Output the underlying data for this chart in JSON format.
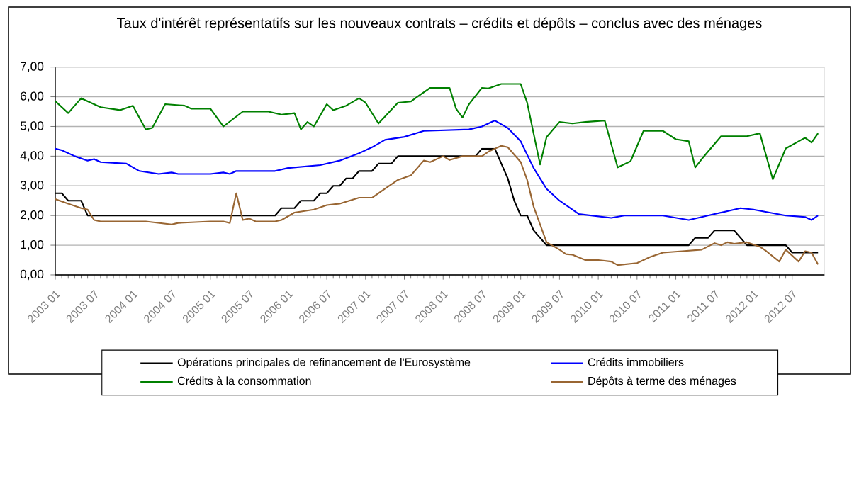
{
  "chart_data": {
    "type": "line",
    "title": "Taux d'intérêt représentatifs sur les nouveaux contrats – crédits et dépôts – conclus avec des ménages",
    "xlim": [
      "2003-01",
      "2012-12"
    ],
    "xticks": [
      {
        "value": "2003-01",
        "label": "2003 01"
      },
      {
        "value": "2003-07",
        "label": "2003 07"
      },
      {
        "value": "2004-01",
        "label": "2004 01"
      },
      {
        "value": "2004-07",
        "label": "2004 07"
      },
      {
        "value": "2005-01",
        "label": "2005 01"
      },
      {
        "value": "2005-07",
        "label": "2005 07"
      },
      {
        "value": "2006-01",
        "label": "2006 01"
      },
      {
        "value": "2006-07",
        "label": "2006 07"
      },
      {
        "value": "2007-01",
        "label": "2007 01"
      },
      {
        "value": "2007-07",
        "label": "2007 07"
      },
      {
        "value": "2008-01",
        "label": "2008 01"
      },
      {
        "value": "2008-07",
        "label": "2008 07"
      },
      {
        "value": "2009-01",
        "label": "2009 01"
      },
      {
        "value": "2009-07",
        "label": "2009 07"
      },
      {
        "value": "2010-01",
        "label": "2010 01"
      },
      {
        "value": "2010-07",
        "label": "2010 07"
      },
      {
        "value": "2011-01",
        "label": "2011 01"
      },
      {
        "value": "2011-07",
        "label": "2011 07"
      },
      {
        "value": "2012-01",
        "label": "2012 01"
      },
      {
        "value": "2012-07",
        "label": "2012 07"
      }
    ],
    "ylim": [
      0,
      7
    ],
    "yticks": [
      {
        "value": 0,
        "label": "0,00"
      },
      {
        "value": 1,
        "label": "1,00"
      },
      {
        "value": 2,
        "label": "2,00"
      },
      {
        "value": 3,
        "label": "3,00"
      },
      {
        "value": 4,
        "label": "4,00"
      },
      {
        "value": 5,
        "label": "5,00"
      },
      {
        "value": 6,
        "label": "6,00"
      },
      {
        "value": 7,
        "label": "7,00"
      }
    ],
    "grid": "y",
    "legend": "bottom",
    "series": [
      {
        "name": "Opérations principales de refinancement de l'Eurosystème",
        "color": "#000000",
        "x": [
          "2003-01",
          "2003-02",
          "2003-03",
          "2003-05",
          "2003-06",
          "2005-11",
          "2005-12",
          "2006-02",
          "2006-03",
          "2006-05",
          "2006-06",
          "2006-07",
          "2006-08",
          "2006-09",
          "2006-10",
          "2006-11",
          "2006-12",
          "2007-02",
          "2007-03",
          "2007-05",
          "2007-06",
          "2008-06",
          "2008-07",
          "2008-09",
          "2008-10",
          "2008-11",
          "2008-12",
          "2009-01",
          "2009-02",
          "2009-03",
          "2009-04",
          "2009-05",
          "2011-03",
          "2011-04",
          "2011-06",
          "2011-07",
          "2011-10",
          "2011-11",
          "2011-12",
          "2012-06",
          "2012-07",
          "2012-11"
        ],
        "values": [
          2.75,
          2.75,
          2.5,
          2.5,
          2.0,
          2.0,
          2.25,
          2.25,
          2.5,
          2.5,
          2.75,
          2.75,
          3.0,
          3.0,
          3.25,
          3.25,
          3.5,
          3.5,
          3.75,
          3.75,
          4.0,
          4.0,
          4.25,
          4.25,
          3.75,
          3.25,
          2.5,
          2.0,
          2.0,
          1.5,
          1.25,
          1.0,
          1.0,
          1.25,
          1.25,
          1.5,
          1.5,
          1.25,
          1.0,
          1.0,
          0.75,
          0.75
        ]
      },
      {
        "name": "Crédits immobiliers",
        "color": "#0000ff",
        "x": [
          "2003-01",
          "2003-02",
          "2003-04",
          "2003-06",
          "2003-07",
          "2003-08",
          "2003-12",
          "2004-02",
          "2004-05",
          "2004-07",
          "2004-08",
          "2005-01",
          "2005-03",
          "2005-04",
          "2005-05",
          "2005-11",
          "2006-01",
          "2006-06",
          "2006-09",
          "2006-12",
          "2007-02",
          "2007-04",
          "2007-07",
          "2007-10",
          "2008-05",
          "2008-07",
          "2008-09",
          "2008-11",
          "2009-01",
          "2009-03",
          "2009-05",
          "2009-07",
          "2009-10",
          "2010-03",
          "2010-05",
          "2010-11",
          "2011-03",
          "2011-07",
          "2011-11",
          "2012-01",
          "2012-06",
          "2012-09",
          "2012-10",
          "2012-11"
        ],
        "values": [
          4.25,
          4.2,
          4.0,
          3.85,
          3.9,
          3.8,
          3.75,
          3.5,
          3.4,
          3.45,
          3.4,
          3.4,
          3.45,
          3.4,
          3.5,
          3.5,
          3.6,
          3.7,
          3.85,
          4.1,
          4.3,
          4.55,
          4.65,
          4.85,
          4.9,
          5.0,
          5.2,
          4.95,
          4.5,
          3.6,
          2.9,
          2.5,
          2.05,
          1.92,
          2.0,
          2.0,
          1.85,
          2.05,
          2.25,
          2.2,
          2.0,
          1.95,
          1.85,
          2.0
        ]
      },
      {
        "name": "Crédits à la consommation",
        "color": "#008000",
        "x": [
          "2003-01",
          "2003-03",
          "2003-05",
          "2003-08",
          "2003-11",
          "2004-01",
          "2004-03",
          "2004-04",
          "2004-06",
          "2004-09",
          "2004-10",
          "2005-01",
          "2005-03",
          "2005-06",
          "2005-10",
          "2005-12",
          "2006-02",
          "2006-03",
          "2006-04",
          "2006-05",
          "2006-07",
          "2006-08",
          "2006-10",
          "2006-12",
          "2007-01",
          "2007-03",
          "2007-06",
          "2007-08",
          "2007-09",
          "2007-11",
          "2008-02",
          "2008-03",
          "2008-04",
          "2008-05",
          "2008-07",
          "2008-08",
          "2008-10",
          "2009-01",
          "2009-02",
          "2009-04",
          "2009-05",
          "2009-07",
          "2009-09",
          "2009-11",
          "2010-02",
          "2010-04",
          "2010-06",
          "2010-08",
          "2010-11",
          "2011-01",
          "2011-03",
          "2011-04",
          "2011-05",
          "2011-08",
          "2011-12",
          "2012-02",
          "2012-04",
          "2012-06",
          "2012-09",
          "2012-10",
          "2012-11"
        ],
        "values": [
          5.85,
          5.45,
          5.95,
          5.65,
          5.55,
          5.7,
          4.9,
          4.95,
          5.75,
          5.7,
          5.6,
          5.6,
          5.0,
          5.5,
          5.5,
          5.4,
          5.45,
          4.9,
          5.15,
          5.0,
          5.75,
          5.55,
          5.7,
          5.95,
          5.8,
          5.1,
          5.8,
          5.84,
          6.0,
          6.3,
          6.3,
          5.6,
          5.3,
          5.75,
          6.3,
          6.28,
          6.43,
          6.43,
          5.8,
          3.72,
          4.64,
          5.15,
          5.1,
          5.15,
          5.2,
          3.62,
          3.83,
          4.85,
          4.85,
          4.57,
          4.5,
          3.62,
          3.9,
          4.67,
          4.67,
          4.77,
          3.22,
          4.26,
          4.62,
          4.46,
          4.77
        ]
      },
      {
        "name": "Dépôts à terme des ménages",
        "color": "#996633",
        "x": [
          "2003-01",
          "2003-03",
          "2003-05",
          "2003-06",
          "2003-07",
          "2003-08",
          "2004-03",
          "2004-07",
          "2004-08",
          "2005-01",
          "2005-03",
          "2005-04",
          "2005-05",
          "2005-06",
          "2005-07",
          "2005-08",
          "2005-11",
          "2005-12",
          "2006-02",
          "2006-05",
          "2006-07",
          "2006-09",
          "2006-12",
          "2007-02",
          "2007-04",
          "2007-06",
          "2007-08",
          "2007-10",
          "2007-11",
          "2008-01",
          "2008-02",
          "2008-04",
          "2008-07",
          "2008-08",
          "2008-09",
          "2008-10",
          "2008-11",
          "2009-01",
          "2009-02",
          "2009-03",
          "2009-04",
          "2009-05",
          "2009-07",
          "2009-08",
          "2009-09",
          "2009-11",
          "2010-01",
          "2010-03",
          "2010-04",
          "2010-07",
          "2010-09",
          "2010-11",
          "2011-02",
          "2011-05",
          "2011-07",
          "2011-08",
          "2011-09",
          "2011-10",
          "2011-12",
          "2012-02",
          "2012-03",
          "2012-05",
          "2012-06",
          "2012-08",
          "2012-09",
          "2012-10",
          "2012-11"
        ],
        "values": [
          2.55,
          2.4,
          2.25,
          2.2,
          1.85,
          1.8,
          1.8,
          1.7,
          1.75,
          1.8,
          1.8,
          1.75,
          2.75,
          1.85,
          1.9,
          1.8,
          1.8,
          1.85,
          2.1,
          2.2,
          2.35,
          2.4,
          2.6,
          2.6,
          2.9,
          3.2,
          3.35,
          3.85,
          3.8,
          4.0,
          3.87,
          4.0,
          4.0,
          4.15,
          4.25,
          4.35,
          4.3,
          3.8,
          3.2,
          2.3,
          1.7,
          1.1,
          0.85,
          0.7,
          0.68,
          0.5,
          0.5,
          0.45,
          0.33,
          0.4,
          0.6,
          0.75,
          0.8,
          0.85,
          1.07,
          1.0,
          1.1,
          1.05,
          1.1,
          0.95,
          0.8,
          0.45,
          0.85,
          0.45,
          0.8,
          0.75,
          0.35
        ]
      }
    ]
  }
}
